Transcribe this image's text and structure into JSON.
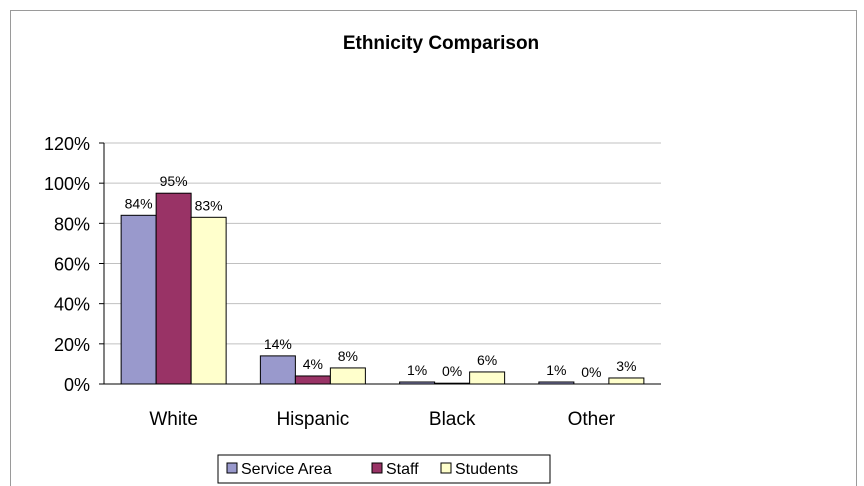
{
  "chart_data": {
    "type": "bar",
    "title": "Ethnicity Comparison",
    "categories": [
      "White",
      "Hispanic",
      "Black",
      "Other"
    ],
    "series": [
      {
        "name": "Service Area",
        "values": [
          84,
          14,
          1,
          1
        ],
        "labels": [
          "84%",
          "14%",
          "1%",
          "1%"
        ],
        "color": "#9999cc"
      },
      {
        "name": "Staff",
        "values": [
          95,
          4,
          0.4,
          0
        ],
        "labels": [
          "95%",
          "4%",
          "0%",
          "0%"
        ],
        "color": "#993366"
      },
      {
        "name": "Students",
        "values": [
          83,
          8,
          6,
          3
        ],
        "labels": [
          "83%",
          "8%",
          "6%",
          "3%"
        ],
        "color": "#ffffcc"
      }
    ],
    "yticks": [
      "0%",
      "20%",
      "40%",
      "60%",
      "80%",
      "100%",
      "120%"
    ],
    "ylim": [
      0,
      120
    ],
    "grid": true,
    "legend_position": "bottom"
  }
}
